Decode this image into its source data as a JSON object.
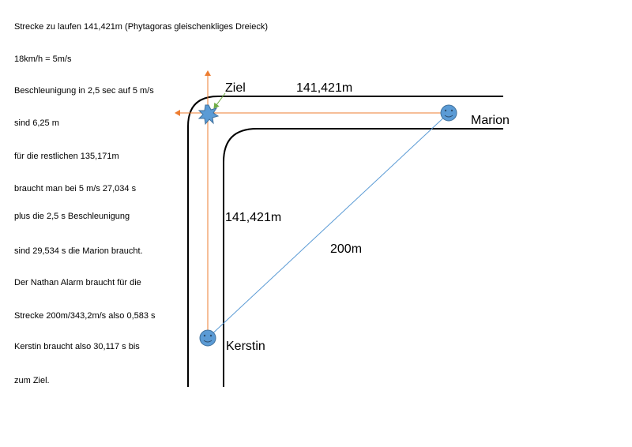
{
  "notes": [
    "Strecke zu laufen 141,421m (Phytagoras gleischenkliges Dreieck)",
    "18km/h = 5m/s",
    "Beschleunigung in 2,5 sec  auf 5 m/s",
    "sind 6,25 m",
    "für die restlichen 135,171m",
    "braucht man bei 5 m/s 27,034 s",
    "plus die 2,5 s Beschleunigung",
    "sind 29,534 s die Marion braucht.",
    "Der Nathan Alarm braucht für die",
    "Strecke 200m/343,2m/s also 0,583 s",
    "Kerstin braucht also 30,117 s bis",
    "zum Ziel."
  ],
  "labels": {
    "ziel": "Ziel",
    "top_distance": "141,421m",
    "side_distance": "141,421m",
    "diagonal": "200m",
    "marion": "Marion",
    "kerstin": "Kerstin"
  }
}
